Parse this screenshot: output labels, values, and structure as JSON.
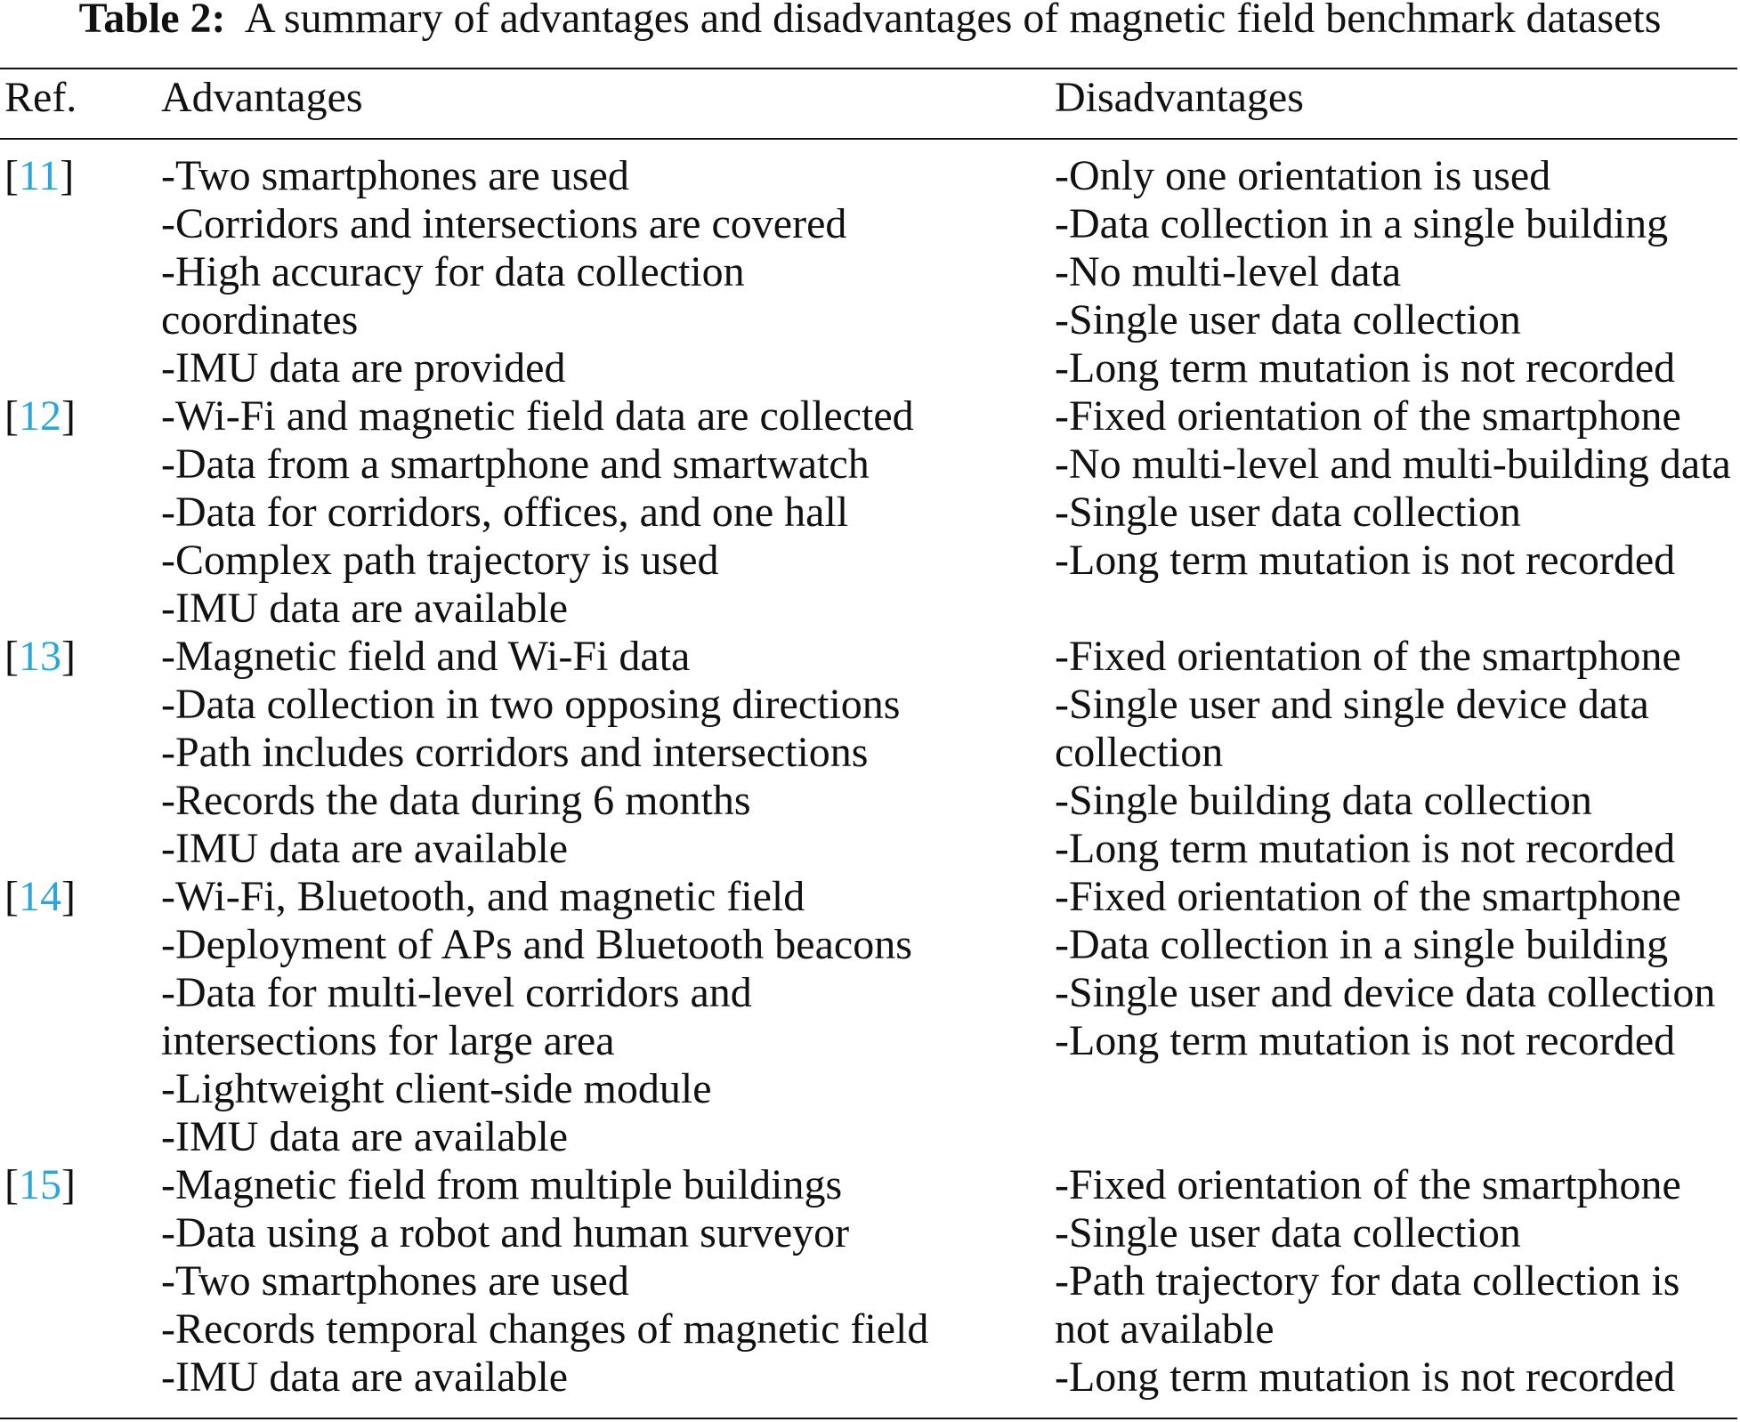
{
  "caption": {
    "label": "Table 2:",
    "text": "A summary of advantages and disadvantages of magnetic field benchmark datasets"
  },
  "colors": {
    "reference_link": "#2aa5de",
    "text": "#111111"
  },
  "table": {
    "headers": {
      "ref": "Ref.",
      "advantages": "Advantages",
      "disadvantages": "Disadvantages"
    },
    "rows": [
      {
        "ref": "11",
        "advantages": [
          [
            "-Two smartphones are used"
          ],
          [
            "-Corridors and intersections are covered"
          ],
          [
            "-High accuracy for data collection",
            "coordinates"
          ],
          [
            "-IMU data are provided"
          ]
        ],
        "disadvantages": [
          [
            "-Only one orientation is used"
          ],
          [
            "-Data collection in a single building"
          ],
          [
            "-No multi-level data"
          ],
          [
            "-Single user data collection"
          ],
          [
            "-Long term mutation is not recorded"
          ]
        ]
      },
      {
        "ref": "12",
        "advantages": [
          [
            "-Wi-Fi and magnetic field data are collected"
          ],
          [
            "-Data from a smartphone and smartwatch"
          ],
          [
            "-Data for corridors, offices, and one hall"
          ],
          [
            "-Complex path trajectory is used"
          ],
          [
            "-IMU data are available"
          ]
        ],
        "disadvantages": [
          [
            "-Fixed orientation of the smartphone"
          ],
          [
            "-No multi-level and multi-building data"
          ],
          [
            "-Single user data collection"
          ],
          [
            "-Long term mutation is not recorded"
          ]
        ]
      },
      {
        "ref": "13",
        "advantages": [
          [
            "-Magnetic field and Wi-Fi data"
          ],
          [
            "-Data collection in two opposing directions"
          ],
          [
            "-Path includes corridors and intersections"
          ],
          [
            "-Records the data during 6 months"
          ],
          [
            "-IMU data are available"
          ]
        ],
        "disadvantages": [
          [
            "-Fixed orientation of the smartphone"
          ],
          [
            "-Single user and single device data",
            "collection"
          ],
          [
            "-Single building data collection"
          ],
          [
            "-Long term mutation is not recorded"
          ]
        ]
      },
      {
        "ref": "14",
        "advantages": [
          [
            "-Wi-Fi, Bluetooth, and magnetic field"
          ],
          [
            "-Deployment of APs and Bluetooth beacons"
          ],
          [
            "-Data for multi-level corridors and",
            "intersections for large area"
          ],
          [
            "-Lightweight client-side module"
          ],
          [
            "-IMU data are available"
          ]
        ],
        "disadvantages": [
          [
            "-Fixed orientation of the smartphone"
          ],
          [
            "-Data collection in a single building"
          ],
          [
            "-Single user and device data collection"
          ],
          [
            "-Long term mutation is not recorded"
          ]
        ]
      },
      {
        "ref": "15",
        "advantages": [
          [
            "-Magnetic field from multiple buildings"
          ],
          [
            "-Data using a robot and human surveyor"
          ],
          [
            "-Two smartphones are used"
          ],
          [
            "-Records temporal changes of magnetic field"
          ],
          [
            "-IMU data are available"
          ]
        ],
        "disadvantages": [
          [
            "-Fixed orientation of the smartphone"
          ],
          [
            "-Single user data collection"
          ],
          [
            "-Path trajectory for data collection is",
            "not available"
          ],
          [
            "-Long term mutation is not recorded"
          ]
        ]
      }
    ]
  }
}
